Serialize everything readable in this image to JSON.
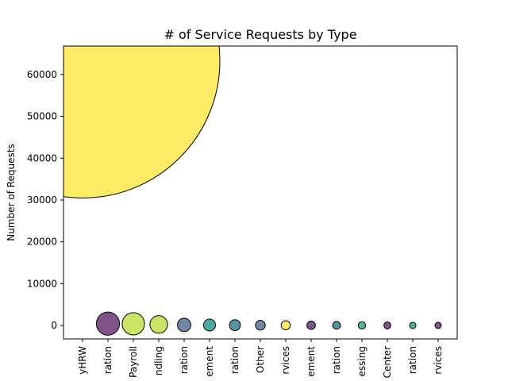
{
  "chart_data": {
    "type": "scatter",
    "title": "# of Service Requests by Type",
    "xlabel": "",
    "ylabel": "Number of Requests",
    "ylim": [
      -3200,
      66800
    ],
    "yticks": [
      0,
      10000,
      20000,
      30000,
      40000,
      50000,
      60000
    ],
    "ytick_labels": [
      "0",
      "10000",
      "20000",
      "30000",
      "40000",
      "50000",
      "60000"
    ],
    "categories": [
      "yHRW",
      "ration",
      "Payroll",
      "ndling",
      "ration",
      "ement",
      "ration",
      "Other",
      "rvices",
      "ement",
      "ration",
      "essing",
      "Center",
      "ration",
      "rvices"
    ],
    "values": [
      63300,
      450,
      420,
      260,
      150,
      120,
      100,
      80,
      70,
      60,
      50,
      45,
      40,
      30,
      25
    ],
    "colors": [
      "#fde74c",
      "#6a3475",
      "#bfe14a",
      "#bfe14a",
      "#5b6e94",
      "#2e9a8e",
      "#3c7f91",
      "#5b6e94",
      "#fde74c",
      "#6a3475",
      "#3c7f91",
      "#3aa57a",
      "#6a3475",
      "#3aa57a",
      "#6a3475"
    ],
    "marker_edge_color": "#000000",
    "grid": false,
    "legend": "none"
  }
}
